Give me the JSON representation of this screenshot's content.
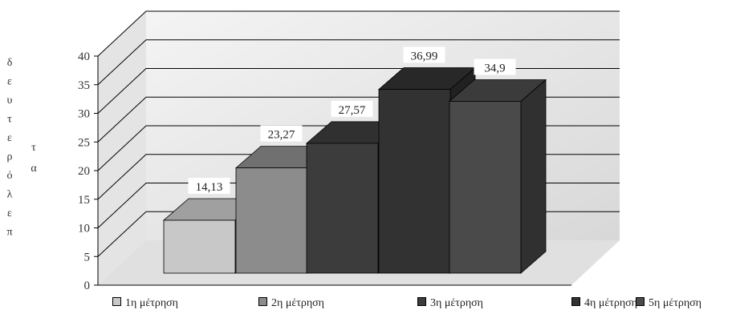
{
  "chart_data": {
    "type": "bar",
    "title": "",
    "ylabel": "δεύτερα τα περλ",
    "ylabel_lines": [
      "δ",
      "ε",
      "υ",
      "τ",
      "ε",
      "ρ",
      "ό",
      "λ",
      "ε",
      "π"
    ],
    "ylabel_second_column": [
      "τ",
      "α"
    ],
    "ylim": [
      0,
      40
    ],
    "yticks": [
      "0",
      "5",
      "10",
      "15",
      "20",
      "25",
      "30",
      "35",
      "40"
    ],
    "categories": [
      "1η μέτρηση",
      "2η μέτρηση",
      "3η μέτρηση",
      "4η μέτρηση",
      "5η μέτρηση"
    ],
    "values": [
      14.13,
      23.27,
      27.57,
      36.99,
      34.9
    ],
    "value_labels": [
      "14,13",
      "23,27",
      "27,57",
      "36,99",
      "34,9"
    ],
    "colors": [
      "#c8c8c8",
      "#8c8c8c",
      "#3c3c3c",
      "#323232",
      "#4a4a4a"
    ],
    "grid": true,
    "legend_position": "bottom",
    "style": "3d"
  }
}
